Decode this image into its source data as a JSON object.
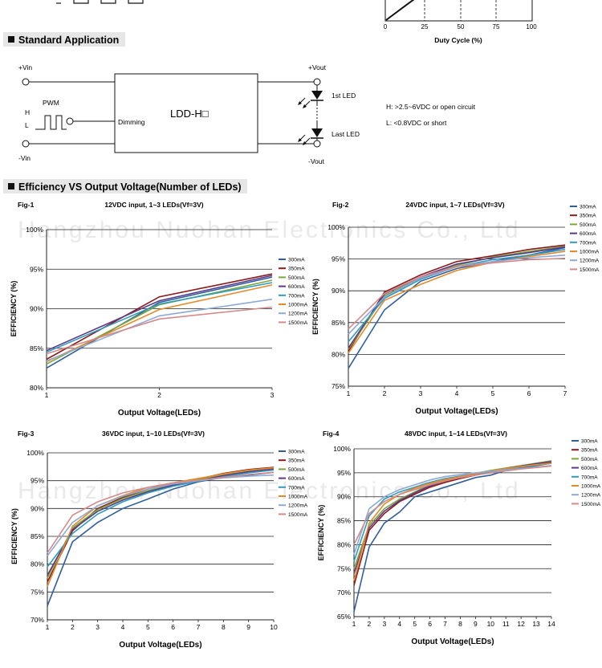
{
  "top_chart": {
    "ticks": [
      "0",
      "25",
      "50",
      "75",
      "100"
    ],
    "xlabel": "Duty Cycle (%)"
  },
  "section_std": {
    "title": "Standard Application"
  },
  "schematic": {
    "vin_pos": "+Vin",
    "vin_neg": "-Vin",
    "pwm": "PWM",
    "h": "H",
    "l": "L",
    "dimming": "Dimming",
    "module": "LDD-H□",
    "vout_pos": "+Vout",
    "vout_neg": "-Vout",
    "led_first": "1st LED",
    "led_last": "Last LED",
    "note_h": "H: >2.5~6VDC or open circuit",
    "note_l": "L: <0.8VDC or short"
  },
  "section_eff": {
    "title": "Efficiency VS Output Voltage(Number of LEDs)"
  },
  "watermark": {
    "text": "Hangzhou Nuohan Electronics Co., Ltd"
  },
  "chart_data": [
    {
      "type": "line",
      "fig": "Fig-1",
      "title": "12VDC input, 1~3 LEDs(Vf=3V)",
      "xlabel": "Output Voltage(LEDs)",
      "ylabel": "EFFICIENCY (%)",
      "x": [
        1,
        2,
        3
      ],
      "ylim": [
        80,
        100
      ],
      "yticks": [
        80,
        85,
        90,
        95,
        100
      ],
      "ytick_labels": [
        "80%",
        "85%",
        "90%",
        "95%",
        "100%"
      ],
      "xticks": [
        "1",
        "2",
        "3"
      ],
      "series": [
        {
          "name": "300mA",
          "color": "#2f5f9c",
          "values": [
            82.5,
            90.8,
            94.0
          ]
        },
        {
          "name": "350mA",
          "color": "#8b1a1a",
          "values": [
            83.6,
            91.5,
            94.4
          ]
        },
        {
          "name": "500mA",
          "color": "#7ba63a",
          "values": [
            83.0,
            90.5,
            93.6
          ]
        },
        {
          "name": "600mA",
          "color": "#5c3a8a",
          "values": [
            84.7,
            91.0,
            94.2
          ]
        },
        {
          "name": "700mA",
          "color": "#2e9cc0",
          "values": [
            84.5,
            90.6,
            93.3
          ]
        },
        {
          "name": "1000mA",
          "color": "#e58a2a",
          "values": [
            83.3,
            89.9,
            93.0
          ]
        },
        {
          "name": "1200mA",
          "color": "#8fa9d6",
          "values": [
            83.4,
            89.1,
            91.2
          ]
        },
        {
          "name": "1500mA",
          "color": "#d48a8a",
          "values": [
            84.3,
            88.7,
            90.2
          ]
        }
      ]
    },
    {
      "type": "line",
      "fig": "Fig-2",
      "title": "24VDC input, 1~7 LEDs(Vf=3V)",
      "xlabel": "Output Voltage(LEDs)",
      "ylabel": "EFFICIENCY (%)",
      "x": [
        1,
        2,
        3,
        4,
        5,
        6,
        7
      ],
      "ylim": [
        75,
        100
      ],
      "yticks": [
        75,
        80,
        85,
        90,
        95,
        100
      ],
      "ytick_labels": [
        "75%",
        "80%",
        "85%",
        "90%",
        "95%",
        "100%"
      ],
      "xticks": [
        "1",
        "2",
        "3",
        "4",
        "5",
        "6",
        "7"
      ],
      "series": [
        {
          "name": "300mA",
          "color": "#2f5f9c",
          "values": [
            77.8,
            87.0,
            91.5,
            93.5,
            94.6,
            95.6,
            96.8
          ]
        },
        {
          "name": "350mA",
          "color": "#8b1a1a",
          "values": [
            80.5,
            89.8,
            92.5,
            94.6,
            95.5,
            96.5,
            97.2
          ]
        },
        {
          "name": "500mA",
          "color": "#7ba63a",
          "values": [
            80.8,
            89.2,
            92.0,
            94.0,
            95.3,
            96.2,
            97.0
          ]
        },
        {
          "name": "600mA",
          "color": "#5c3a8a",
          "values": [
            81.0,
            89.5,
            92.2,
            94.2,
            95.2,
            96.0,
            96.9
          ]
        },
        {
          "name": "700mA",
          "color": "#2e9cc0",
          "values": [
            82.0,
            88.8,
            91.8,
            93.8,
            94.9,
            95.6,
            96.5
          ]
        },
        {
          "name": "1000mA",
          "color": "#e58a2a",
          "values": [
            80.2,
            88.5,
            91.0,
            93.2,
            94.5,
            95.4,
            96.2
          ]
        },
        {
          "name": "1200mA",
          "color": "#8fa9d6",
          "values": [
            83.2,
            89.0,
            92.0,
            93.8,
            94.6,
            95.2,
            95.6
          ]
        },
        {
          "name": "1500mA",
          "color": "#d48a8a",
          "values": [
            84.0,
            89.6,
            92.2,
            93.8,
            94.4,
            94.9,
            95.1
          ]
        }
      ]
    },
    {
      "type": "line",
      "fig": "Fig-3",
      "title": "36VDC input, 1~10 LEDs(Vf=3V)",
      "xlabel": "Output Voltage(LEDs)",
      "ylabel": "EFFICIENCY (%)",
      "x": [
        1,
        2,
        3,
        4,
        5,
        6,
        7,
        8,
        9,
        10
      ],
      "ylim": [
        70,
        100
      ],
      "yticks": [
        70,
        75,
        80,
        85,
        90,
        95,
        100
      ],
      "ytick_labels": [
        "70%",
        "75%",
        "80%",
        "85%",
        "90%",
        "95%",
        "100%"
      ],
      "xticks": [
        "1",
        "2",
        "3",
        "4",
        "5",
        "6",
        "7",
        "8",
        "9",
        "10"
      ],
      "series": [
        {
          "name": "300mA",
          "color": "#2f5f9c",
          "values": [
            72.5,
            84.0,
            87.5,
            90.0,
            91.7,
            93.5,
            94.8,
            95.6,
            96.0,
            96.5
          ]
        },
        {
          "name": "350mA",
          "color": "#8b1a1a",
          "values": [
            76.8,
            86.0,
            90.0,
            92.0,
            93.5,
            94.5,
            95.3,
            96.3,
            97.0,
            97.4
          ]
        },
        {
          "name": "500mA",
          "color": "#7ba63a",
          "values": [
            77.5,
            86.5,
            89.8,
            91.8,
            93.2,
            94.3,
            95.2,
            96.0,
            96.7,
            97.2
          ]
        },
        {
          "name": "600mA",
          "color": "#5c3a8a",
          "values": [
            78.0,
            86.2,
            89.5,
            91.5,
            93.0,
            94.2,
            95.0,
            95.9,
            96.6,
            97.1
          ]
        },
        {
          "name": "700mA",
          "color": "#2e9cc0",
          "values": [
            79.5,
            85.5,
            89.0,
            91.2,
            92.8,
            94.0,
            94.9,
            95.7,
            96.4,
            96.9
          ]
        },
        {
          "name": "1000mA",
          "color": "#e58a2a",
          "values": [
            76.0,
            86.8,
            90.5,
            92.3,
            93.8,
            94.6,
            95.4,
            96.2,
            96.9,
            97.3
          ]
        },
        {
          "name": "1200mA",
          "color": "#8fa9d6",
          "values": [
            81.5,
            87.5,
            90.5,
            92.2,
            93.5,
            94.4,
            95.0,
            95.5,
            95.8,
            96.0
          ]
        },
        {
          "name": "1500mA",
          "color": "#d48a8a",
          "values": [
            82.0,
            88.8,
            91.2,
            92.8,
            93.8,
            94.6,
            95.1,
            95.6,
            96.1,
            96.5
          ]
        }
      ]
    },
    {
      "type": "line",
      "fig": "Fig-4",
      "title": "48VDC input, 1~14 LEDs(Vf=3V)",
      "xlabel": "Output Voltage(LEDs)",
      "ylabel": "EFFICIENCY (%)",
      "x": [
        1,
        2,
        3,
        4,
        5,
        6,
        7,
        8,
        9,
        10,
        11,
        12,
        13,
        14
      ],
      "ylim": [
        65,
        100
      ],
      "yticks": [
        65,
        70,
        75,
        80,
        85,
        90,
        95,
        100
      ],
      "ytick_labels": [
        "65%",
        "70%",
        "75%",
        "80%",
        "85%",
        "90%",
        "95%",
        "100%"
      ],
      "xticks": [
        "1",
        "2",
        "3",
        "4",
        "5",
        "6",
        "7",
        "8",
        "9",
        "10",
        "11",
        "12",
        "13",
        "14"
      ],
      "series": [
        {
          "name": "300mA",
          "color": "#2f5f9c",
          "values": [
            66.0,
            79.5,
            84.5,
            86.8,
            90.0,
            91.0,
            92.0,
            93.0,
            94.0,
            94.5,
            95.5,
            96.0,
            96.5,
            97.0
          ]
        },
        {
          "name": "350mA",
          "color": "#8b1a1a",
          "values": [
            71.5,
            83.0,
            86.5,
            89.0,
            90.5,
            92.0,
            93.0,
            93.8,
            94.5,
            95.2,
            95.8,
            96.3,
            96.8,
            97.2
          ]
        },
        {
          "name": "500mA",
          "color": "#7ba63a",
          "values": [
            75.0,
            84.0,
            87.5,
            89.5,
            91.0,
            92.5,
            93.5,
            94.2,
            94.9,
            95.5,
            96.0,
            96.5,
            97.0,
            97.5
          ]
        },
        {
          "name": "600mA",
          "color": "#5c3a8a",
          "values": [
            74.0,
            83.5,
            87.0,
            89.2,
            90.8,
            92.3,
            93.3,
            94.0,
            94.7,
            95.3,
            95.9,
            96.4,
            96.9,
            97.3
          ]
        },
        {
          "name": "700mA",
          "color": "#2e9cc0",
          "values": [
            76.5,
            86.0,
            89.5,
            91.0,
            92.0,
            93.0,
            93.8,
            94.3,
            94.8,
            95.2,
            95.8,
            96.2,
            96.6,
            97.0
          ]
        },
        {
          "name": "1000mA",
          "color": "#e58a2a",
          "values": [
            72.5,
            84.5,
            88.5,
            90.5,
            91.8,
            92.8,
            93.6,
            94.2,
            94.8,
            95.4,
            95.9,
            96.3,
            96.7,
            97.0
          ]
        },
        {
          "name": "1200mA",
          "color": "#8fa9d6",
          "values": [
            78.0,
            87.5,
            90.0,
            91.5,
            92.5,
            93.5,
            94.2,
            94.6,
            95.0,
            95.3,
            95.6,
            95.9,
            96.2,
            96.5
          ]
        },
        {
          "name": "1500mA",
          "color": "#d48a8a",
          "values": [
            80.0,
            86.5,
            89.0,
            90.5,
            91.5,
            92.5,
            93.3,
            94.0,
            94.5,
            95.0,
            95.4,
            95.8,
            96.1,
            96.4
          ]
        }
      ]
    }
  ]
}
